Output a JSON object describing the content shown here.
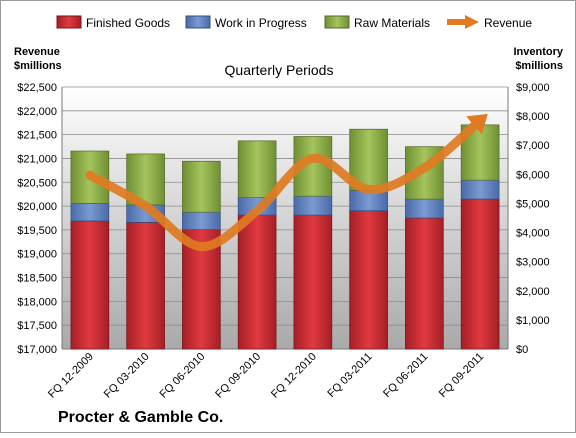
{
  "chart_data": {
    "type": "bar",
    "subtype": "stacked-bar-with-line",
    "title": "Quarterly Periods",
    "company": "Procter & Gamble Co.",
    "categories": [
      "FQ 12-2009",
      "FQ 03-2010",
      "FQ 06-2010",
      "FQ 09-2010",
      "FQ 12-2010",
      "FQ 03-2011",
      "FQ 06-2011",
      "FQ 09-2011"
    ],
    "left_axis": {
      "label_line1": "Revenue",
      "label_line2": "$millions",
      "min": 17000,
      "max": 22500,
      "step": 500
    },
    "right_axis": {
      "label_line1": "Inventory",
      "label_line2": "$millions",
      "min": 0,
      "max": 9000,
      "step": 1000
    },
    "series": [
      {
        "name": "Finished Goods",
        "axis": "right",
        "color": "#c0262d",
        "values": [
          4400,
          4350,
          4100,
          4600,
          4600,
          4750,
          4500,
          5150
        ]
      },
      {
        "name": "Work in Progress",
        "axis": "right",
        "color": "#5b7fbf",
        "values": [
          600,
          600,
          600,
          600,
          650,
          700,
          650,
          650
        ]
      },
      {
        "name": "Raw Materials",
        "axis": "right",
        "color": "#8fb04a",
        "values": [
          1800,
          1750,
          1750,
          1950,
          2050,
          2100,
          1800,
          1900
        ]
      },
      {
        "name": "Revenue",
        "axis": "left",
        "type": "line",
        "color": "#e07b22",
        "values": [
          20650,
          20000,
          19150,
          19900,
          21000,
          20350,
          20800,
          21800
        ]
      }
    ],
    "legend": "top",
    "grid": true
  }
}
